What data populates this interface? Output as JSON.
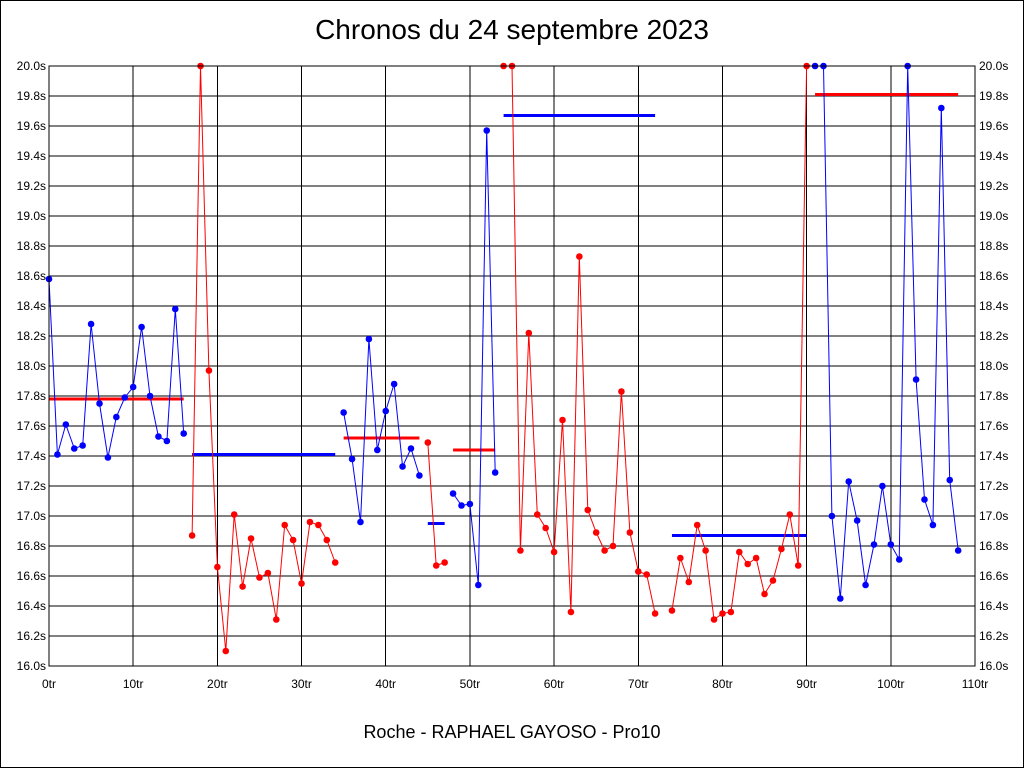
{
  "chart_data": {
    "type": "line",
    "title": "Chronos du 24 septembre 2023",
    "footer": "Roche - RAPHAEL GAYOSO - Pro10",
    "xlim": [
      0,
      110
    ],
    "ylim": [
      16.0,
      20.0
    ],
    "x_ticks": [
      0,
      10,
      20,
      30,
      40,
      50,
      60,
      70,
      80,
      90,
      100,
      110
    ],
    "x_tick_labels": [
      "0tr",
      "10tr",
      "20tr",
      "30tr",
      "40tr",
      "50tr",
      "60tr",
      "70tr",
      "80tr",
      "90tr",
      "100tr",
      "110tr"
    ],
    "y_ticks": [
      16.0,
      16.2,
      16.4,
      16.6,
      16.8,
      17.0,
      17.2,
      17.4,
      17.6,
      17.8,
      18.0,
      18.2,
      18.4,
      18.6,
      18.8,
      19.0,
      19.2,
      19.4,
      19.6,
      19.8,
      20.0
    ],
    "y_tick_labels": [
      "16.0s",
      "16.2s",
      "16.4s",
      "16.6s",
      "16.8s",
      "17.0s",
      "17.2s",
      "17.4s",
      "17.6s",
      "17.8s",
      "18.0s",
      "18.2s",
      "18.4s",
      "18.6s",
      "18.8s",
      "19.0s",
      "19.2s",
      "19.4s",
      "19.6s",
      "19.8s",
      "20.0s"
    ],
    "grid": true,
    "segments": [
      {
        "color": "#0000ff",
        "points": [
          [
            0,
            18.58
          ],
          [
            1,
            17.41
          ],
          [
            2,
            17.61
          ],
          [
            3,
            17.45
          ],
          [
            4,
            17.47
          ],
          [
            5,
            18.28
          ],
          [
            6,
            17.75
          ],
          [
            7,
            17.39
          ],
          [
            8,
            17.66
          ],
          [
            9,
            17.79
          ],
          [
            10,
            17.86
          ],
          [
            11,
            18.26
          ],
          [
            12,
            17.8
          ],
          [
            13,
            17.53
          ],
          [
            14,
            17.5
          ],
          [
            15,
            18.38
          ],
          [
            16,
            17.55
          ]
        ]
      },
      {
        "color": "#ff0000",
        "points": [
          [
            17,
            16.87
          ],
          [
            18,
            20.0
          ],
          [
            19,
            17.97
          ],
          [
            20,
            16.66
          ],
          [
            21,
            16.1
          ],
          [
            22,
            17.01
          ],
          [
            23,
            16.53
          ],
          [
            24,
            16.85
          ],
          [
            25,
            16.59
          ],
          [
            26,
            16.62
          ],
          [
            27,
            16.31
          ],
          [
            28,
            16.94
          ],
          [
            29,
            16.84
          ],
          [
            30,
            16.55
          ],
          [
            31,
            16.96
          ],
          [
            32,
            16.94
          ],
          [
            33,
            16.84
          ],
          [
            34,
            16.69
          ]
        ]
      },
      {
        "color": "#0000ff",
        "points": [
          [
            35,
            17.69
          ],
          [
            36,
            17.38
          ],
          [
            37,
            16.96
          ],
          [
            38,
            18.18
          ],
          [
            39,
            17.44
          ],
          [
            40,
            17.7
          ],
          [
            41,
            17.88
          ],
          [
            42,
            17.33
          ],
          [
            43,
            17.45
          ],
          [
            44,
            17.27
          ]
        ]
      },
      {
        "color": "#ff0000",
        "points": [
          [
            45,
            17.49
          ],
          [
            46,
            16.67
          ],
          [
            47,
            16.69
          ]
        ]
      },
      {
        "color": "#0000ff",
        "points": [
          [
            48,
            17.15
          ],
          [
            49,
            17.07
          ],
          [
            50,
            17.08
          ],
          [
            51,
            16.54
          ],
          [
            52,
            19.57
          ],
          [
            53,
            17.29
          ]
        ]
      },
      {
        "color": "#ff0000",
        "points": [
          [
            54,
            20.0
          ],
          [
            55,
            20.0
          ],
          [
            56,
            16.77
          ],
          [
            57,
            18.22
          ],
          [
            58,
            17.01
          ],
          [
            59,
            16.92
          ],
          [
            60,
            16.76
          ],
          [
            61,
            17.64
          ],
          [
            62,
            16.36
          ],
          [
            63,
            18.73
          ],
          [
            64,
            17.04
          ],
          [
            65,
            16.89
          ],
          [
            66,
            16.77
          ],
          [
            67,
            16.8
          ],
          [
            68,
            17.83
          ],
          [
            69,
            16.89
          ],
          [
            70,
            16.63
          ],
          [
            71,
            16.61
          ],
          [
            72,
            16.35
          ]
        ]
      },
      {
        "color": "#ff0000",
        "points": [
          [
            74,
            16.37
          ],
          [
            75,
            16.72
          ],
          [
            76,
            16.56
          ],
          [
            77,
            16.94
          ],
          [
            78,
            16.77
          ],
          [
            79,
            16.31
          ],
          [
            80,
            16.35
          ],
          [
            81,
            16.36
          ],
          [
            82,
            16.76
          ],
          [
            83,
            16.68
          ],
          [
            84,
            16.72
          ],
          [
            85,
            16.48
          ],
          [
            86,
            16.57
          ],
          [
            87,
            16.78
          ],
          [
            88,
            17.01
          ],
          [
            89,
            16.67
          ],
          [
            90,
            20.0
          ]
        ]
      },
      {
        "color": "#0000ff",
        "points": [
          [
            91,
            20.0
          ],
          [
            92,
            20.0
          ],
          [
            93,
            17.0
          ],
          [
            94,
            16.45
          ],
          [
            95,
            17.23
          ],
          [
            96,
            16.97
          ],
          [
            97,
            16.54
          ],
          [
            98,
            16.81
          ],
          [
            99,
            17.2
          ],
          [
            100,
            16.81
          ],
          [
            101,
            16.71
          ],
          [
            102,
            20.0
          ],
          [
            103,
            17.91
          ],
          [
            104,
            17.11
          ],
          [
            105,
            16.94
          ],
          [
            106,
            19.72
          ],
          [
            107,
            17.24
          ],
          [
            108,
            16.77
          ]
        ]
      }
    ],
    "averages": [
      {
        "color": "#ff0000",
        "x": [
          0,
          16
        ],
        "y": 17.78
      },
      {
        "color": "#0000ff",
        "x": [
          17,
          34
        ],
        "y": 17.41
      },
      {
        "color": "#ff0000",
        "x": [
          35,
          44
        ],
        "y": 17.52
      },
      {
        "color": "#0000ff",
        "x": [
          45,
          47
        ],
        "y": 16.95
      },
      {
        "color": "#ff0000",
        "x": [
          48,
          53
        ],
        "y": 17.44
      },
      {
        "color": "#0000ff",
        "x": [
          54,
          72
        ],
        "y": 19.67
      },
      {
        "color": "#0000ff",
        "x": [
          74,
          90
        ],
        "y": 16.87
      },
      {
        "color": "#ff0000",
        "x": [
          91,
          108
        ],
        "y": 19.81
      }
    ]
  }
}
